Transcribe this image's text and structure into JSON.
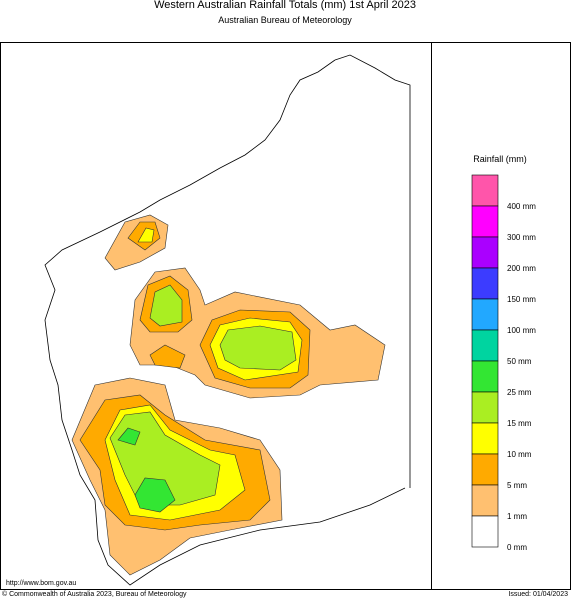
{
  "header": {
    "title": "Western Australian Rainfall Totals (mm) 1st April 2023",
    "subtitle": "Australian Bureau of Meteorology"
  },
  "legend": {
    "title": "Rainfall (mm)",
    "colors": [
      "#ff55aa",
      "#ff00ff",
      "#aa00ff",
      "#3c3cff",
      "#22a8ff",
      "#00d4a0",
      "#33e633",
      "#aaee22",
      "#ffff00",
      "#ffaa00",
      "#ffc070",
      "#ffffff"
    ],
    "labels": [
      "400 mm",
      "300 mm",
      "200 mm",
      "150 mm",
      "100 mm",
      "50 mm",
      "25 mm",
      "15 mm",
      "10 mm",
      "5 mm",
      "1 mm",
      "0 mm"
    ]
  },
  "footer": {
    "url": "http://www.bom.gov.au",
    "copyright": "© Commonwealth of Australia 2023, Bureau of Meteorology",
    "issued": "Issued: 01/04/2023"
  }
}
